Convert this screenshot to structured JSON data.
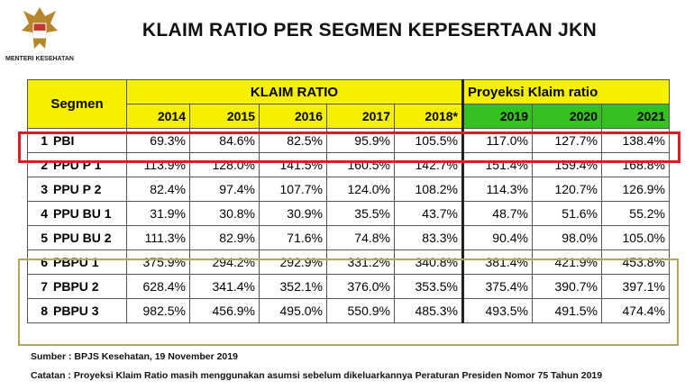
{
  "header": {
    "logo_caption": "MENTERI KESEHATAN",
    "title": "KLAIM RATIO PER SEGMEN KEPESERTAAN JKN"
  },
  "table": {
    "segmen": "Segmen",
    "klaim_ratio": "KLAIM RATIO",
    "proyeksi": "Proyeksi Klaim ratio",
    "years": [
      "2014",
      "2015",
      "2016",
      "2017",
      "2018*",
      "2019",
      "2020",
      "2021"
    ],
    "rows": [
      {
        "no": "1",
        "name": "PBI",
        "values": [
          "69.3%",
          "84.6%",
          "82.5%",
          "95.9%",
          "105.5%",
          "117.0%",
          "127.7%",
          "138.4%"
        ]
      },
      {
        "no": "2",
        "name": "PPU P 1",
        "values": [
          "113.9%",
          "128.0%",
          "141.5%",
          "160.5%",
          "142.7%",
          "151.4%",
          "159.4%",
          "168.8%"
        ]
      },
      {
        "no": "3",
        "name": "PPU P 2",
        "values": [
          "82.4%",
          "97.4%",
          "107.7%",
          "124.0%",
          "108.2%",
          "114.3%",
          "120.7%",
          "126.9%"
        ]
      },
      {
        "no": "4",
        "name": "PPU BU 1",
        "values": [
          "31.9%",
          "30.8%",
          "30.9%",
          "35.5%",
          "43.7%",
          "48.7%",
          "51.6%",
          "55.2%"
        ]
      },
      {
        "no": "5",
        "name": "PPU BU 2",
        "values": [
          "111.3%",
          "82.9%",
          "71.6%",
          "74.8%",
          "83.3%",
          "90.4%",
          "98.0%",
          "105.0%"
        ]
      },
      {
        "no": "6",
        "name": "PBPU 1",
        "values": [
          "375.9%",
          "294.2%",
          "292.9%",
          "331.2%",
          "340.8%",
          "381.4%",
          "421.9%",
          "453.8%"
        ]
      },
      {
        "no": "7",
        "name": "PBPU 2",
        "values": [
          "628.4%",
          "341.4%",
          "352.1%",
          "376.0%",
          "353.5%",
          "375.4%",
          "390.7%",
          "397.1%"
        ]
      },
      {
        "no": "8",
        "name": "PBPU 3",
        "values": [
          "982.5%",
          "456.9%",
          "495.0%",
          "550.9%",
          "485.3%",
          "493.5%",
          "491.5%",
          "474.4%"
        ]
      }
    ]
  },
  "footer": {
    "sumber": "Sumber : BPJS Kesehatan, 19 November 2019",
    "catatan": "Catatan : Proyeksi Klaim Ratio masih menggunakan asumsi sebelum dikeluarkannya Peraturan Presiden Nomor 75 Tahun 2019"
  }
}
